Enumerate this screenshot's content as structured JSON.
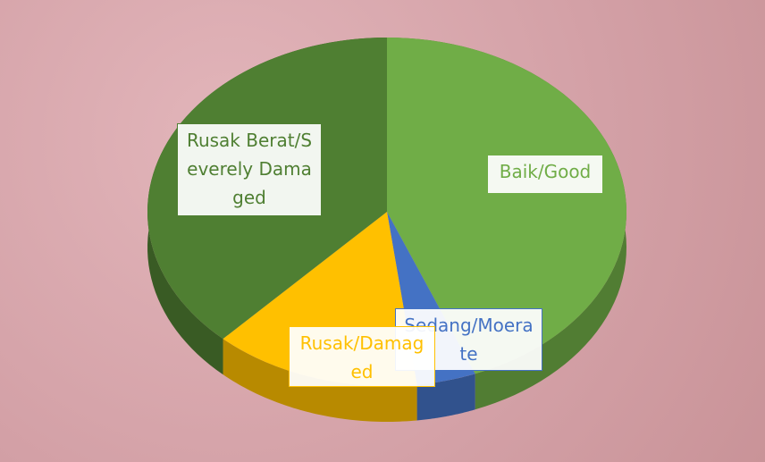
{
  "chart_data": {
    "type": "pie",
    "categories": [
      "Baik/Good",
      "Sedang/Moerate",
      "Rusak/Damaged",
      "Rusak Berat/Severely Damaged"
    ],
    "values": [
      44,
      4,
      14,
      38
    ],
    "colors": [
      "#70ad47",
      "#4472c4",
      "#ffc000",
      "#4f7f32"
    ]
  }
}
